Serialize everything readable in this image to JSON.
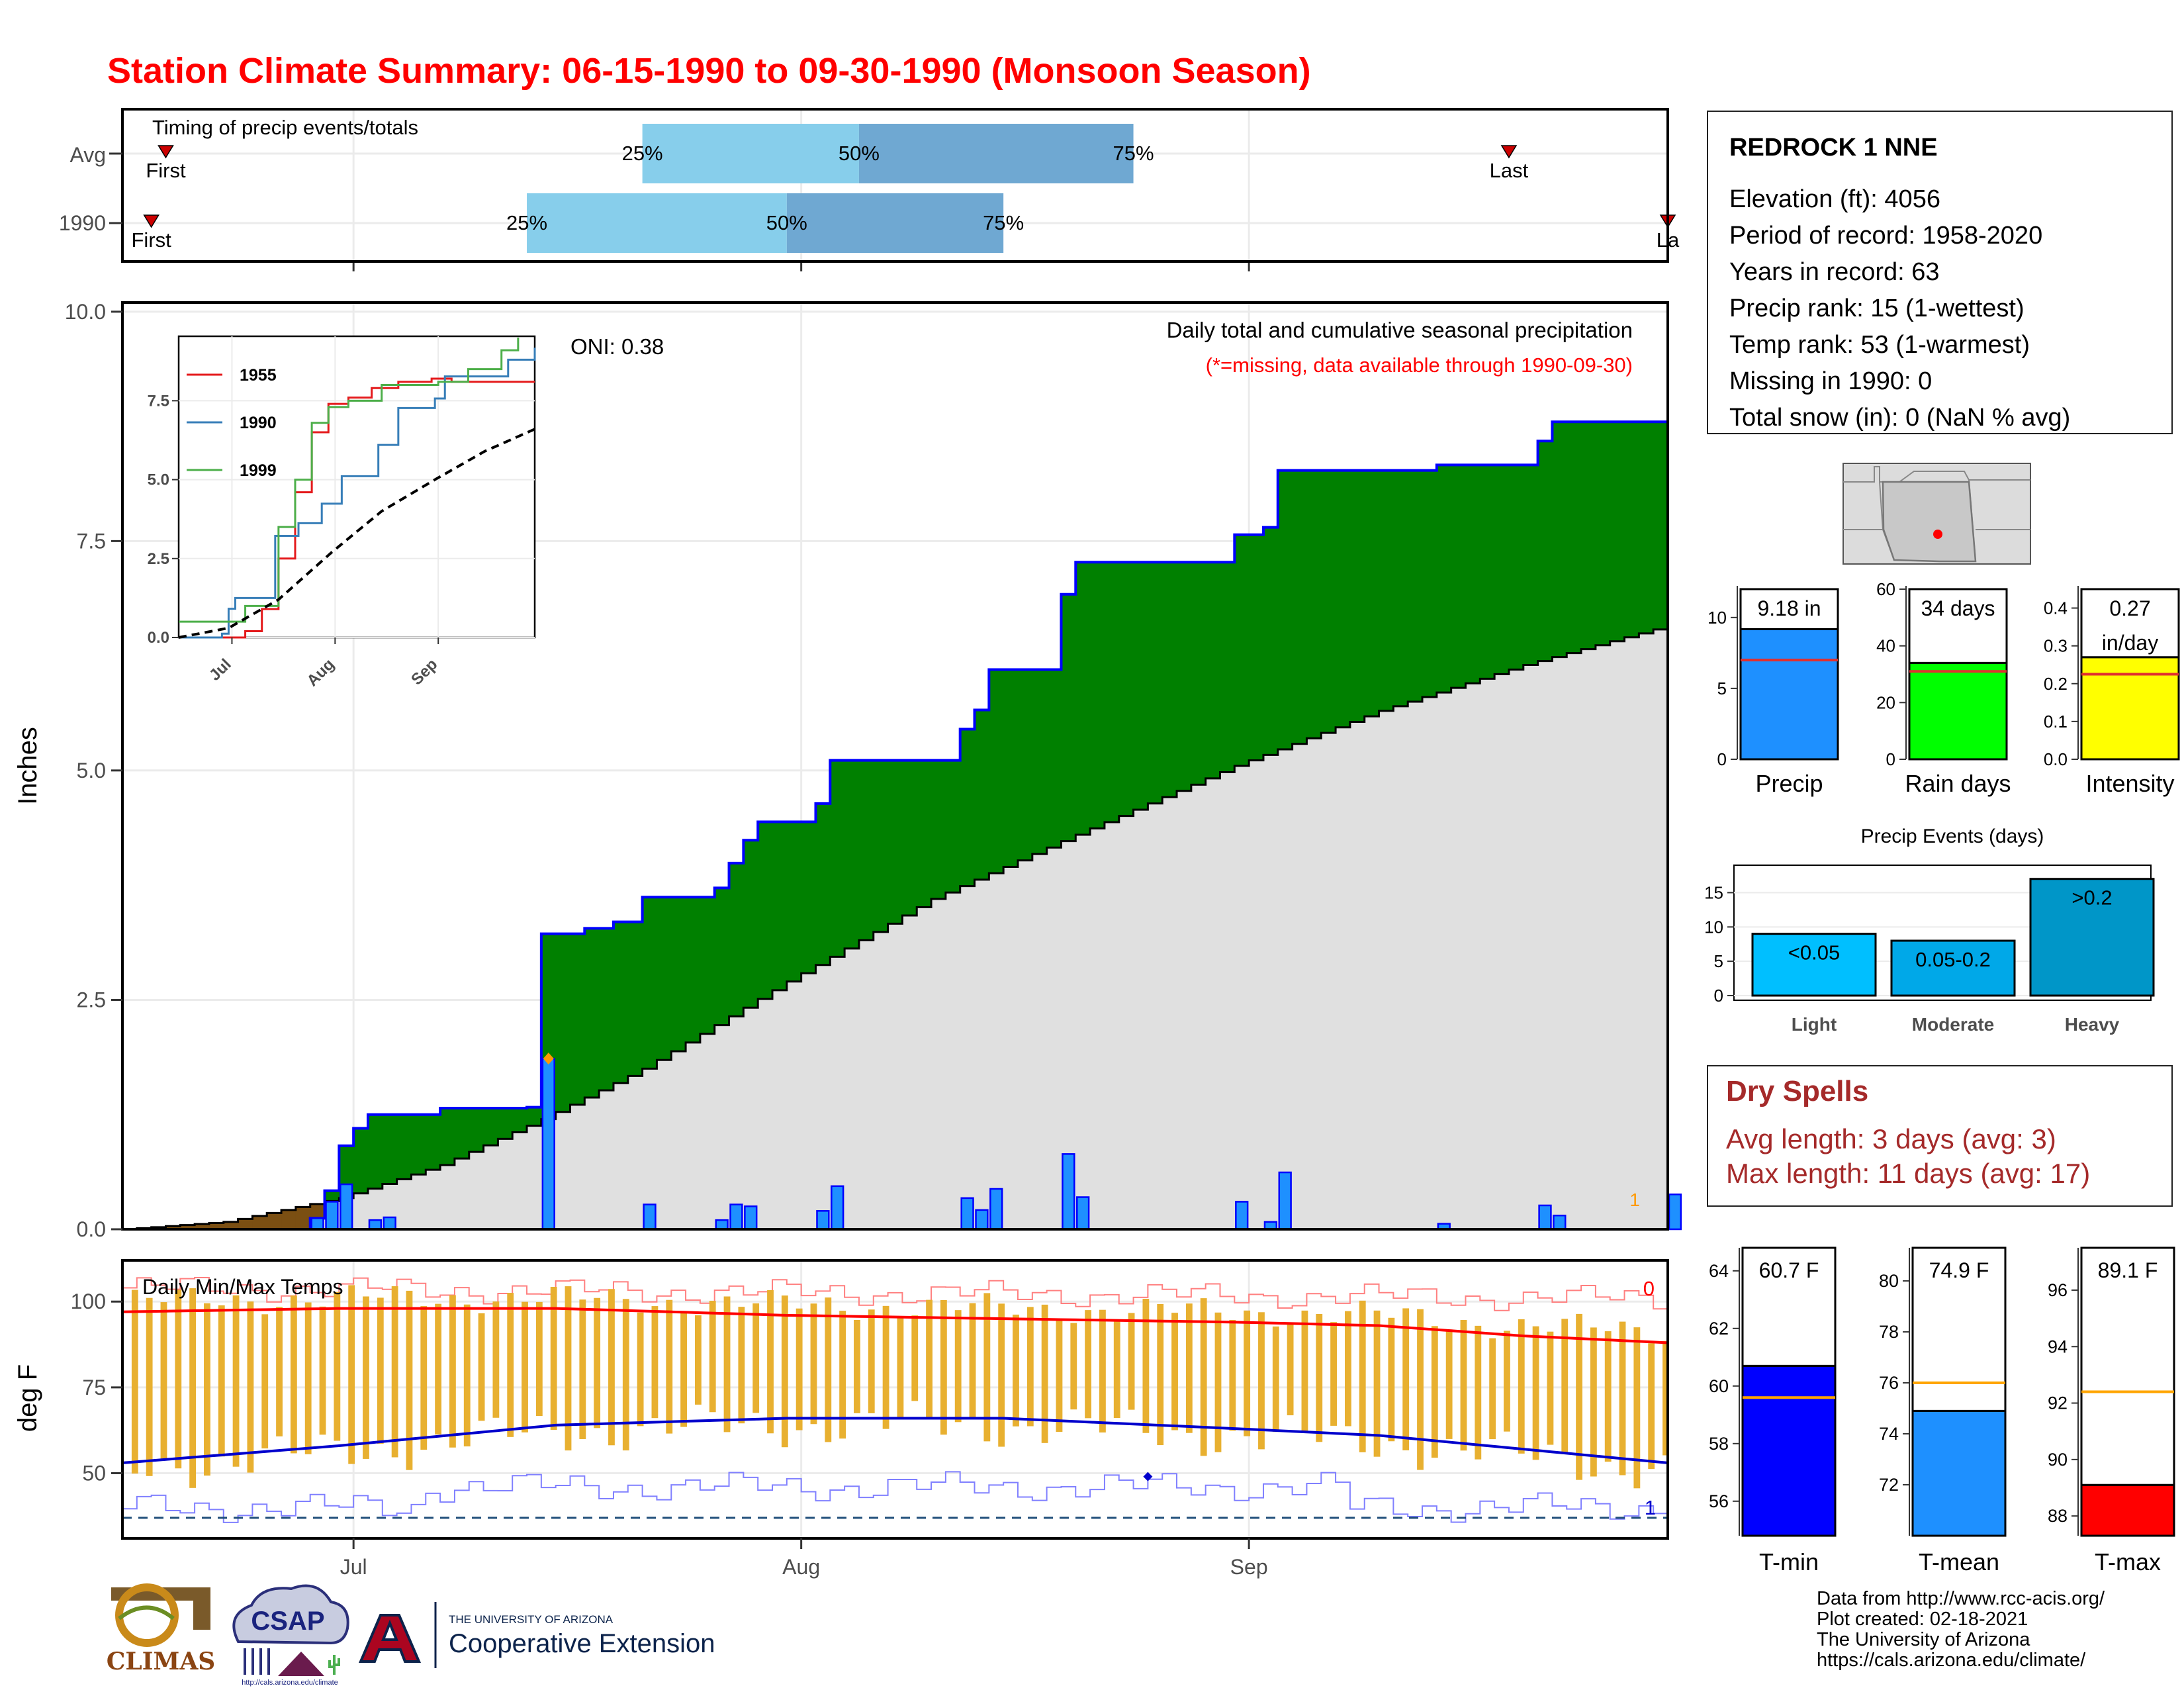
{
  "title": "Station Climate Summary: 06-15-1990 to 09-30-1990 (Monsoon Season)",
  "colors": {
    "title": "#ff0000",
    "quartile_light": "#87ceeb",
    "quartile_dark": "#6fa8d2",
    "cum_green": "#008000",
    "cum_gray": "#e0e0e0",
    "early_brown": "#7b4f12",
    "bars": "#1e90ff",
    "bar_outline": "#0000ff",
    "tmax": "#ff0000",
    "tmin": "#0000cc",
    "range": "#e8b030",
    "dry_spell": "#a52a2a",
    "rain_days": "#00ff00",
    "intensity": "#ffff00",
    "events": "#00a0d8",
    "tmin_box": "#0000ff",
    "tmean_box": "#1e90ff",
    "tmax_box": "#ff0000"
  },
  "timing_panel": {
    "title": "Timing of precip events/totals",
    "rows": [
      {
        "label": "Avg",
        "first_label": "First",
        "last_label": "Last",
        "p25_label": "25%",
        "p50_label": "50%",
        "p75_label": "75%",
        "first": "1990-06-18",
        "p25": "1990-07-21",
        "p50": "1990-08-05",
        "p75": "1990-08-24",
        "last": "1990-09-19"
      },
      {
        "label": "1990",
        "first_label": "First",
        "last_label": "La",
        "p25_label": "25%",
        "p50_label": "50%",
        "p75_label": "75%",
        "first": "1990-06-17",
        "p25": "1990-07-13",
        "p50": "1990-07-31",
        "p75": "1990-08-15",
        "last": "1990-09-30"
      }
    ]
  },
  "station": {
    "name": "REDROCK 1 NNE",
    "lines": [
      "Elevation (ft): 4056",
      "Period of record: 1958-2020",
      "Years in record: 63",
      "Precip rank: 15 (1-wettest)",
      "Temp rank: 53 (1-warmest)",
      "Missing in 1990: 0",
      "Total snow (in): 0 (NaN % avg)"
    ]
  },
  "precip_panel": {
    "ylabel": "Inches",
    "oni": "ONI: 0.38",
    "caption": "Daily total and cumulative seasonal precipitation",
    "missing_note": "(*=missing, data available through 1990-09-30)",
    "missing_count": "1",
    "y_ticks": [
      "0.0",
      "2.5",
      "5.0",
      "7.5",
      "10.0"
    ],
    "x_ticks": [
      "Jul",
      "Aug",
      "Sep"
    ]
  },
  "temp_panel": {
    "ylabel": "deg F",
    "title": "Daily Min/Max Temps",
    "missing_max": "0",
    "missing_min": "1",
    "y_ticks": [
      "50",
      "75",
      "100"
    ]
  },
  "mini_bars": [
    {
      "label": "Precip",
      "value_text": "9.18 in",
      "value": 9.18,
      "avg": 7.0,
      "ymax": 12,
      "ticks": [
        "0",
        "5",
        "10"
      ]
    },
    {
      "label": "Rain days",
      "value_text": "34 days",
      "value": 34,
      "avg": 31,
      "ymax": 60,
      "ticks": [
        "0",
        "20",
        "40",
        "60"
      ]
    },
    {
      "label": "Intensity",
      "value_text": "0.27\nin/day",
      "value": 0.27,
      "avg": 0.225,
      "ymax": 0.45,
      "ticks": [
        "0.0",
        "0.1",
        "0.2",
        "0.3",
        "0.4"
      ]
    }
  ],
  "events": {
    "title": "Precip Events (days)",
    "categories": [
      "Light",
      "Moderate",
      "Heavy"
    ],
    "bar_labels": [
      "<0.05",
      "0.05-0.2",
      ">0.2"
    ],
    "values": [
      9,
      8,
      17
    ],
    "ticks": [
      "0",
      "5",
      "10",
      "15"
    ]
  },
  "dry_spells": {
    "title": "Dry Spells",
    "avg": "Avg length: 3 days (avg: 3)",
    "max": "Max length: 11 days (avg: 17)"
  },
  "temp_boxes": [
    {
      "label": "T-min",
      "value_text": "60.7 F",
      "value": 60.7,
      "avg": 59.6,
      "ymin": 54.8,
      "ymax": 64.8,
      "ticks": [
        56,
        58,
        60,
        62,
        64
      ]
    },
    {
      "label": "T-mean",
      "value_text": "74.9 F",
      "value": 74.9,
      "avg": 76.0,
      "ymin": 70.0,
      "ymax": 81.3,
      "ticks": [
        72,
        74,
        76,
        78,
        80
      ]
    },
    {
      "label": "T-max",
      "value_text": "89.1 F",
      "value": 89.1,
      "avg": 92.4,
      "ymin": 87.3,
      "ymax": 97.5,
      "ticks": [
        88,
        90,
        92,
        94,
        96
      ]
    }
  ],
  "footer": [
    "Data from http://www.rcc-acis.org/",
    "Plot created: 02-18-2021",
    "The University of Arizona",
    "https://cals.arizona.edu/climate/"
  ],
  "logos": {
    "climas": "CLIMAS",
    "csap": "CSAP",
    "csap_url": "http://cals.arizona.edu/climate",
    "ua_small": "THE UNIVERSITY OF ARIZONA",
    "ua_big": "Cooperative Extension"
  },
  "chart_data": [
    {
      "type": "area",
      "title": "Daily total and cumulative seasonal precipitation",
      "ylabel": "Inches",
      "xlim": [
        "1990-06-15",
        "1990-09-30"
      ],
      "ylim": [
        0,
        10
      ],
      "daily_precip": [
        {
          "date": "1990-06-28",
          "value": 0.12
        },
        {
          "date": "1990-06-29",
          "value": 0.3
        },
        {
          "date": "1990-06-30",
          "value": 0.49
        },
        {
          "date": "1990-07-02",
          "value": 0.1
        },
        {
          "date": "1990-07-03",
          "value": 0.13
        },
        {
          "date": "1990-07-14",
          "value": 1.86
        },
        {
          "date": "1990-07-21",
          "value": 0.27
        },
        {
          "date": "1990-07-26",
          "value": 0.1
        },
        {
          "date": "1990-07-27",
          "value": 0.27
        },
        {
          "date": "1990-07-28",
          "value": 0.25
        },
        {
          "date": "1990-08-02",
          "value": 0.2
        },
        {
          "date": "1990-08-03",
          "value": 0.47
        },
        {
          "date": "1990-08-12",
          "value": 0.34
        },
        {
          "date": "1990-08-13",
          "value": 0.21
        },
        {
          "date": "1990-08-14",
          "value": 0.44
        },
        {
          "date": "1990-08-19",
          "value": 0.82
        },
        {
          "date": "1990-08-20",
          "value": 0.35
        },
        {
          "date": "1990-08-31",
          "value": 0.3
        },
        {
          "date": "1990-09-02",
          "value": 0.08
        },
        {
          "date": "1990-09-03",
          "value": 0.62
        },
        {
          "date": "1990-09-14",
          "value": 0.06
        },
        {
          "date": "1990-09-21",
          "value": 0.26
        },
        {
          "date": "1990-09-22",
          "value": 0.15
        },
        {
          "date": "1990-09-30",
          "value": 0.38
        }
      ],
      "cumulative_1990": [
        {
          "date": "1990-06-15",
          "value": 0.0
        },
        {
          "date": "1990-06-28",
          "value": 0.12
        },
        {
          "date": "1990-06-29",
          "value": 0.42
        },
        {
          "date": "1990-06-30",
          "value": 0.91
        },
        {
          "date": "1990-07-01",
          "value": 1.1
        },
        {
          "date": "1990-07-02",
          "value": 1.25
        },
        {
          "date": "1990-07-07",
          "value": 1.32
        },
        {
          "date": "1990-07-13",
          "value": 1.33
        },
        {
          "date": "1990-07-14",
          "value": 3.22
        },
        {
          "date": "1990-07-17",
          "value": 3.28
        },
        {
          "date": "1990-07-19",
          "value": 3.35
        },
        {
          "date": "1990-07-21",
          "value": 3.62
        },
        {
          "date": "1990-07-26",
          "value": 3.72
        },
        {
          "date": "1990-07-27",
          "value": 3.99
        },
        {
          "date": "1990-07-28",
          "value": 4.24
        },
        {
          "date": "1990-07-29",
          "value": 4.44
        },
        {
          "date": "1990-08-02",
          "value": 4.64
        },
        {
          "date": "1990-08-03",
          "value": 5.11
        },
        {
          "date": "1990-08-12",
          "value": 5.45
        },
        {
          "date": "1990-08-13",
          "value": 5.66
        },
        {
          "date": "1990-08-14",
          "value": 6.1
        },
        {
          "date": "1990-08-19",
          "value": 6.92
        },
        {
          "date": "1990-08-20",
          "value": 7.27
        },
        {
          "date": "1990-08-31",
          "value": 7.57
        },
        {
          "date": "1990-09-02",
          "value": 7.65
        },
        {
          "date": "1990-09-03",
          "value": 8.27
        },
        {
          "date": "1990-09-14",
          "value": 8.33
        },
        {
          "date": "1990-09-21",
          "value": 8.59
        },
        {
          "date": "1990-09-22",
          "value": 8.8
        },
        {
          "date": "1990-09-30",
          "value": 9.18
        }
      ],
      "cumulative_avg": [
        {
          "date": "1990-06-15",
          "value": 0.0
        },
        {
          "date": "1990-06-22",
          "value": 0.08
        },
        {
          "date": "1990-06-30",
          "value": 0.34
        },
        {
          "date": "1990-07-07",
          "value": 0.7
        },
        {
          "date": "1990-07-14",
          "value": 1.2
        },
        {
          "date": "1990-07-21",
          "value": 1.75
        },
        {
          "date": "1990-07-31",
          "value": 2.7
        },
        {
          "date": "1990-08-10",
          "value": 3.6
        },
        {
          "date": "1990-08-20",
          "value": 4.3
        },
        {
          "date": "1990-08-31",
          "value": 5.05
        },
        {
          "date": "1990-09-10",
          "value": 5.65
        },
        {
          "date": "1990-09-20",
          "value": 6.15
        },
        {
          "date": "1990-09-30",
          "value": 6.58
        }
      ]
    },
    {
      "type": "line",
      "title": "",
      "xlim": [
        "1990-06-15",
        "1990-09-30"
      ],
      "ylim": [
        0,
        9.5
      ],
      "y_ticks": [
        "0.0",
        "2.5",
        "5.0",
        "7.5"
      ],
      "x_ticks": [
        "Jul",
        "Aug",
        "Sep"
      ],
      "series": [
        {
          "name": "1955",
          "color": "#e41a1c",
          "points": [
            [
              "1990-06-15",
              0
            ],
            [
              "1990-07-05",
              0.2
            ],
            [
              "1990-07-10",
              0.9
            ],
            [
              "1990-07-15",
              2.5
            ],
            [
              "1990-07-20",
              4.6
            ],
            [
              "1990-07-25",
              6.5
            ],
            [
              "1990-07-30",
              7.4
            ],
            [
              "1990-08-05",
              7.6
            ],
            [
              "1990-08-12",
              7.9
            ],
            [
              "1990-08-20",
              8.1
            ],
            [
              "1990-08-30",
              8.2
            ],
            [
              "1990-09-05",
              8.1
            ],
            [
              "1990-09-30",
              8.1
            ]
          ]
        },
        {
          "name": "1990",
          "color": "#377eb8",
          "points": [
            [
              "1990-06-15",
              0
            ],
            [
              "1990-06-28",
              0.12
            ],
            [
              "1990-06-30",
              0.91
            ],
            [
              "1990-07-02",
              1.25
            ],
            [
              "1990-07-14",
              3.22
            ],
            [
              "1990-07-21",
              3.62
            ],
            [
              "1990-07-28",
              4.24
            ],
            [
              "1990-08-03",
              5.11
            ],
            [
              "1990-08-14",
              6.1
            ],
            [
              "1990-08-20",
              7.27
            ],
            [
              "1990-08-31",
              7.57
            ],
            [
              "1990-09-03",
              8.27
            ],
            [
              "1990-09-22",
              8.8
            ],
            [
              "1990-09-30",
              9.18
            ]
          ]
        },
        {
          "name": "1999",
          "color": "#4daf4a",
          "points": [
            [
              "1990-06-15",
              0.5
            ],
            [
              "1990-06-29",
              0.5
            ],
            [
              "1990-07-05",
              1.0
            ],
            [
              "1990-07-15",
              3.5
            ],
            [
              "1990-07-20",
              5.0
            ],
            [
              "1990-07-25",
              6.8
            ],
            [
              "1990-07-30",
              7.3
            ],
            [
              "1990-08-05",
              7.5
            ],
            [
              "1990-08-15",
              8.0
            ],
            [
              "1990-08-25",
              8.0
            ],
            [
              "1990-09-01",
              8.1
            ],
            [
              "1990-09-10",
              8.5
            ],
            [
              "1990-09-20",
              9.1
            ],
            [
              "1990-09-25",
              9.5
            ]
          ]
        },
        {
          "name": "",
          "color": "#000000",
          "dashed": true,
          "points": [
            [
              "1990-06-15",
              0
            ],
            [
              "1990-06-30",
              0.3
            ],
            [
              "1990-07-15",
              1.2
            ],
            [
              "1990-07-31",
              2.7
            ],
            [
              "1990-08-15",
              4.0
            ],
            [
              "1990-08-31",
              5.0
            ],
            [
              "1990-09-15",
              5.9
            ],
            [
              "1990-09-30",
              6.6
            ]
          ]
        }
      ]
    },
    {
      "type": "line",
      "title": "Daily Min/Max Temps",
      "ylabel": "deg F",
      "xlim": [
        "1990-06-15",
        "1990-09-30"
      ],
      "ylim": [
        31,
        112
      ],
      "series": [
        {
          "name": "",
          "color": "#ff0000",
          "points": [
            [
              "1990-06-15",
              97
            ],
            [
              "1990-06-30",
              98
            ],
            [
              "1990-07-15",
              98
            ],
            [
              "1990-07-31",
              96
            ],
            [
              "1990-08-15",
              95
            ],
            [
              "1990-08-31",
              94
            ],
            [
              "1990-09-10",
              93
            ],
            [
              "1990-09-20",
              90
            ],
            [
              "1990-09-30",
              88
            ]
          ]
        },
        {
          "name": "",
          "color": "#0000cc",
          "points": [
            [
              "1990-06-15",
              53
            ],
            [
              "1990-06-30",
              58
            ],
            [
              "1990-07-10",
              62
            ],
            [
              "1990-07-15",
              64
            ],
            [
              "1990-07-31",
              66
            ],
            [
              "1990-08-15",
              66
            ],
            [
              "1990-08-31",
              63
            ],
            [
              "1990-09-10",
              61
            ],
            [
              "1990-09-20",
              57
            ],
            [
              "1990-09-30",
              53
            ]
          ]
        }
      ],
      "record_high_level": 104,
      "record_low_level": 38,
      "reference_line": 37
    }
  ]
}
